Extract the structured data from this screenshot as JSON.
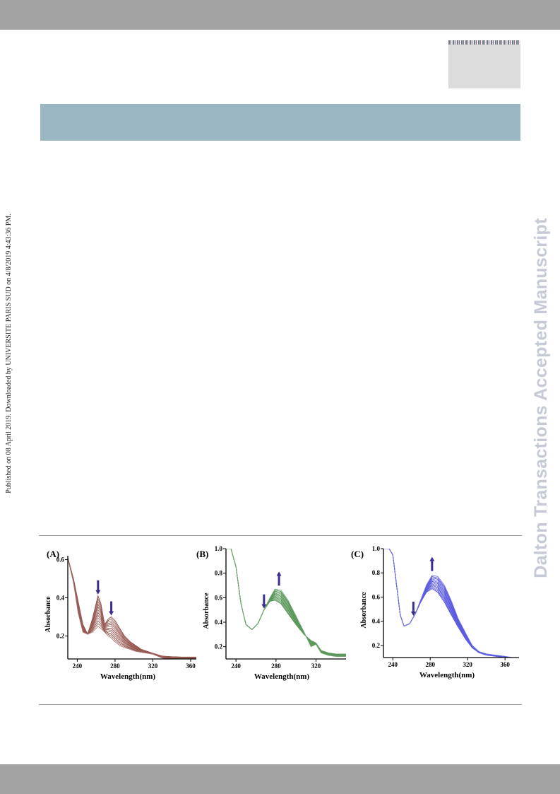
{
  "sidebar_text": "Published on 08 April 2019. Downloaded by UNIVERSITE PARIS SUD on 4/8/2019 4:43:36 PM.",
  "watermark": "Dalton Transactions Accepted Manuscript",
  "colors": {
    "bar": "#a3a3a3",
    "band": "#9bb6c3",
    "watermark": "#c6cad7",
    "arrow": "#3a2f8f"
  },
  "chart_data": [
    {
      "type": "line",
      "panel_label": "(A)",
      "xlabel": "Wavelength(nm)",
      "ylabel": "Absorbance",
      "xlim": [
        230,
        366
      ],
      "ylim": [
        0.08,
        0.62
      ],
      "xticks": [
        240,
        280,
        320,
        360
      ],
      "yticks": [
        0.2,
        0.4,
        0.6
      ],
      "color": "#7a2a22",
      "n_curves": 12,
      "peak_wavelengths": [
        262,
        276
      ],
      "trend": "decrease",
      "series": [
        {
          "x": [
            230,
            236,
            241,
            246,
            251,
            256,
            260,
            262,
            265,
            269,
            273,
            276,
            280,
            285,
            290,
            296,
            302,
            308,
            314,
            320,
            330,
            340,
            350,
            366
          ],
          "values": [
            0.61,
            0.5,
            0.38,
            0.26,
            0.21,
            0.29,
            0.37,
            0.41,
            0.37,
            0.26,
            0.29,
            0.3,
            0.28,
            0.24,
            0.2,
            0.17,
            0.15,
            0.13,
            0.12,
            0.11,
            0.095,
            0.092,
            0.09,
            0.09
          ]
        },
        {
          "x": [
            230,
            236,
            241,
            246,
            251,
            256,
            260,
            262,
            265,
            269,
            273,
            276,
            280,
            285,
            290,
            296,
            302,
            308,
            314,
            320,
            330,
            340,
            350,
            366
          ],
          "values": [
            0.61,
            0.48,
            0.32,
            0.22,
            0.21,
            0.22,
            0.24,
            0.25,
            0.24,
            0.22,
            0.2,
            0.19,
            0.17,
            0.15,
            0.14,
            0.13,
            0.12,
            0.115,
            0.11,
            0.105,
            0.085,
            0.075,
            0.07,
            0.07
          ]
        }
      ]
    },
    {
      "type": "line",
      "panel_label": "(B)",
      "xlabel": "Wavelength(nm)",
      "ylabel": "Absorbance",
      "xlim": [
        230,
        350
      ],
      "ylim": [
        0.1,
        1.0
      ],
      "xticks": [
        240,
        280,
        320
      ],
      "yticks": [
        0.2,
        0.4,
        0.6,
        0.8,
        1.0
      ],
      "color": "#2c7a2c",
      "n_curves": 12,
      "peak_wavelengths": [
        283
      ],
      "trend": "increase",
      "series": [
        {
          "x": [
            230,
            235,
            240,
            245,
            250,
            256,
            262,
            268,
            274,
            279,
            285,
            292,
            300,
            308,
            315,
            320,
            325,
            332,
            340,
            350
          ],
          "values": [
            1.0,
            1.0,
            0.85,
            0.55,
            0.38,
            0.34,
            0.39,
            0.5,
            0.57,
            0.58,
            0.55,
            0.47,
            0.38,
            0.3,
            0.25,
            0.23,
            0.17,
            0.15,
            0.14,
            0.14
          ]
        },
        {
          "x": [
            230,
            235,
            240,
            245,
            250,
            256,
            262,
            268,
            274,
            279,
            285,
            292,
            300,
            308,
            315,
            320,
            325,
            332,
            340,
            350
          ],
          "values": [
            1.0,
            1.0,
            0.85,
            0.55,
            0.38,
            0.34,
            0.39,
            0.5,
            0.6,
            0.67,
            0.66,
            0.58,
            0.45,
            0.32,
            0.2,
            0.22,
            0.15,
            0.13,
            0.12,
            0.12
          ]
        }
      ]
    },
    {
      "type": "line",
      "panel_label": "(C)",
      "xlabel": "Wavelength(nm)",
      "ylabel": "Absorbance",
      "xlim": [
        230,
        375
      ],
      "ylim": [
        0.1,
        1.0
      ],
      "xticks": [
        240,
        280,
        320,
        360
      ],
      "yticks": [
        0.2,
        0.4,
        0.6,
        0.8,
        1.0
      ],
      "color": "#2b2bd6",
      "n_curves": 12,
      "peak_wavelengths": [
        282
      ],
      "trend": "increase",
      "series": [
        {
          "x": [
            232,
            236,
            240,
            244,
            248,
            252,
            258,
            264,
            270,
            276,
            282,
            288,
            295,
            302,
            310,
            318,
            325,
            332,
            340,
            350,
            360,
            375
          ],
          "values": [
            1.0,
            1.0,
            0.95,
            0.7,
            0.45,
            0.36,
            0.38,
            0.46,
            0.56,
            0.64,
            0.67,
            0.64,
            0.56,
            0.46,
            0.35,
            0.25,
            0.18,
            0.14,
            0.12,
            0.11,
            0.1,
            0.09
          ]
        },
        {
          "x": [
            232,
            236,
            240,
            244,
            248,
            252,
            258,
            264,
            270,
            276,
            282,
            288,
            295,
            302,
            310,
            318,
            325,
            332,
            340,
            350,
            360,
            375
          ],
          "values": [
            1.0,
            1.0,
            0.95,
            0.7,
            0.45,
            0.36,
            0.38,
            0.46,
            0.58,
            0.7,
            0.78,
            0.77,
            0.7,
            0.58,
            0.42,
            0.3,
            0.2,
            0.15,
            0.13,
            0.12,
            0.11,
            0.09
          ]
        }
      ]
    }
  ]
}
